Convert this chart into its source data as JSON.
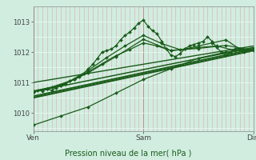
{
  "bg_color": "#d0ede0",
  "plot_bg_color": "#d0ede0",
  "grid_color_v_major": "#cc8888",
  "grid_color_v_minor": "#ddaaaa",
  "grid_color_h": "#e8f8f0",
  "line_color": "#1a5c1a",
  "ylim": [
    1009.4,
    1013.5
  ],
  "yticks": [
    1010,
    1011,
    1012,
    1013
  ],
  "xtick_labels": [
    "Ven",
    "Sam",
    "Dim"
  ],
  "xtick_positions": [
    0,
    48,
    96
  ],
  "xlabel": "Pression niveau de la mer( hPa )",
  "total_hours": 96,
  "series": [
    {
      "x": [
        0,
        2,
        4,
        6,
        8,
        10,
        12,
        14,
        16,
        18,
        20,
        22,
        24,
        26,
        28,
        30,
        32,
        34,
        36,
        38,
        40,
        42,
        44,
        46,
        48,
        50,
        52,
        54,
        56,
        58,
        60,
        62,
        64,
        66,
        68,
        70,
        72,
        74,
        76,
        78,
        80,
        82,
        84,
        86,
        88,
        90,
        92,
        94,
        96
      ],
      "y": [
        1010.7,
        1010.75,
        1010.72,
        1010.78,
        1010.75,
        1010.82,
        1010.9,
        1010.95,
        1011.05,
        1011.1,
        1011.2,
        1011.3,
        1011.45,
        1011.6,
        1011.8,
        1012.0,
        1012.05,
        1012.1,
        1012.2,
        1012.4,
        1012.55,
        1012.65,
        1012.8,
        1012.95,
        1013.05,
        1012.85,
        1012.7,
        1012.6,
        1012.35,
        1012.1,
        1011.9,
        1011.85,
        1011.95,
        1012.1,
        1012.2,
        1012.25,
        1012.3,
        1012.35,
        1012.5,
        1012.35,
        1012.15,
        1012.0,
        1011.9,
        1012.0,
        1012.1,
        1012.1,
        1012.0,
        1012.05,
        1012.1
      ],
      "marker": "D",
      "markersize": 2,
      "linewidth": 0.9
    },
    {
      "x": [
        0,
        6,
        12,
        18,
        24,
        30,
        36,
        42,
        48,
        54,
        60,
        66,
        72,
        78,
        84,
        90,
        96
      ],
      "y": [
        1010.7,
        1010.78,
        1010.92,
        1011.1,
        1011.35,
        1011.62,
        1011.88,
        1012.08,
        1012.3,
        1012.2,
        1012.05,
        1012.1,
        1012.2,
        1012.3,
        1012.4,
        1012.1,
        1012.1
      ],
      "marker": "D",
      "markersize": 2,
      "linewidth": 0.9
    },
    {
      "x": [
        0,
        8,
        16,
        24,
        32,
        40,
        48,
        56,
        64,
        72,
        80,
        88,
        96
      ],
      "y": [
        1010.72,
        1010.85,
        1011.05,
        1011.4,
        1011.82,
        1012.2,
        1012.55,
        1012.28,
        1012.08,
        1012.15,
        1012.2,
        1012.05,
        1012.1
      ],
      "marker": "D",
      "markersize": 2,
      "linewidth": 0.9
    },
    {
      "x": [
        0,
        12,
        24,
        36,
        48,
        60,
        72,
        84,
        96
      ],
      "y": [
        1010.7,
        1010.9,
        1011.32,
        1011.85,
        1012.42,
        1012.05,
        1012.12,
        1012.22,
        1012.05
      ],
      "marker": "D",
      "markersize": 2,
      "linewidth": 0.9
    },
    {
      "x": [
        0,
        12,
        24,
        36,
        48,
        60,
        72,
        84,
        96
      ],
      "y": [
        1009.6,
        1009.9,
        1010.2,
        1010.65,
        1011.1,
        1011.45,
        1011.8,
        1012.0,
        1012.1
      ],
      "marker": "D",
      "markersize": 2,
      "linewidth": 0.9
    },
    {
      "x": [
        0,
        96
      ],
      "y": [
        1010.5,
        1012.05
      ],
      "marker": null,
      "linewidth": 1.5
    },
    {
      "x": [
        0,
        96
      ],
      "y": [
        1010.55,
        1012.1
      ],
      "marker": null,
      "linewidth": 1.3
    },
    {
      "x": [
        0,
        96
      ],
      "y": [
        1010.7,
        1012.15
      ],
      "marker": null,
      "linewidth": 1.1
    },
    {
      "x": [
        0,
        96
      ],
      "y": [
        1011.0,
        1012.2
      ],
      "marker": null,
      "linewidth": 1.0
    }
  ]
}
